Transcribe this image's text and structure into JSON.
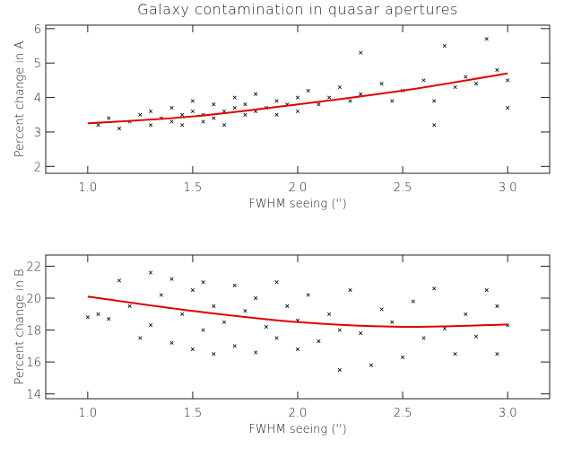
{
  "chart_data": [
    {
      "type": "scatter",
      "title": "Galaxy contamination in quasar apertures",
      "x_label": "FWHM seeing ('')",
      "y_label": "Percent change in A",
      "xlim": [
        0.8,
        3.2
      ],
      "xticks": [
        {
          "value": 1,
          "label": "1.0"
        },
        {
          "value": 1.5,
          "label": "1.5"
        },
        {
          "value": 2,
          "label": "2.0"
        },
        {
          "value": 2.5,
          "label": "2.5"
        },
        {
          "value": 3,
          "label": "3.0"
        }
      ],
      "ylim": [
        1.8,
        6.1
      ],
      "yticks": [
        2,
        3,
        4,
        5,
        6
      ],
      "series": [
        {
          "type": "scatter",
          "color": "#000000",
          "x": [
            1.05,
            1.1,
            1.15,
            1.2,
            1.25,
            1.3,
            1.3,
            1.35,
            1.4,
            1.4,
            1.45,
            1.45,
            1.5,
            1.5,
            1.55,
            1.55,
            1.6,
            1.6,
            1.65,
            1.65,
            1.7,
            1.7,
            1.75,
            1.75,
            1.8,
            1.8,
            1.85,
            1.9,
            1.9,
            1.95,
            2.0,
            2.0,
            2.05,
            2.1,
            2.15,
            2.2,
            2.25,
            2.3,
            2.3,
            2.4,
            2.45,
            2.5,
            2.6,
            2.65,
            2.7,
            2.75,
            2.8,
            2.85,
            2.9,
            2.95,
            3.0,
            3.0,
            2.65
          ],
          "values": [
            3.2,
            3.4,
            3.1,
            3.3,
            3.5,
            3.2,
            3.6,
            3.4,
            3.3,
            3.7,
            3.5,
            3.2,
            3.6,
            3.9,
            3.3,
            3.5,
            3.8,
            3.4,
            3.6,
            3.2,
            3.7,
            4.0,
            3.5,
            3.8,
            3.6,
            4.1,
            3.7,
            3.9,
            3.5,
            3.8,
            4.0,
            3.6,
            4.2,
            3.8,
            4.0,
            4.3,
            3.9,
            5.3,
            4.1,
            4.4,
            3.9,
            4.2,
            4.5,
            3.9,
            5.5,
            4.3,
            4.6,
            4.4,
            5.7,
            4.8,
            3.7,
            4.5,
            3.2
          ]
        },
        {
          "type": "line",
          "color": "#e00000",
          "x": [
            1.0,
            1.5,
            2.0,
            2.5,
            3.0
          ],
          "values": [
            3.25,
            3.45,
            3.8,
            4.2,
            4.7
          ]
        }
      ]
    },
    {
      "type": "scatter",
      "x_label": "FWHM seeing ('')",
      "y_label": "Percent change in B",
      "xlim": [
        0.8,
        3.2
      ],
      "xticks": [
        {
          "value": 1,
          "label": "1.0"
        },
        {
          "value": 1.5,
          "label": "1.5"
        },
        {
          "value": 2,
          "label": "2.0"
        },
        {
          "value": 2.5,
          "label": "2.5"
        },
        {
          "value": 3,
          "label": "3.0"
        }
      ],
      "ylim": [
        13.7,
        22.7
      ],
      "yticks": [
        14,
        16,
        18,
        20,
        22
      ],
      "series": [
        {
          "type": "scatter",
          "color": "#000000",
          "x": [
            1.0,
            1.05,
            1.1,
            1.15,
            1.2,
            1.25,
            1.3,
            1.3,
            1.35,
            1.4,
            1.4,
            1.45,
            1.5,
            1.5,
            1.55,
            1.55,
            1.6,
            1.6,
            1.65,
            1.7,
            1.7,
            1.75,
            1.8,
            1.8,
            1.85,
            1.9,
            1.9,
            1.95,
            2.0,
            2.0,
            2.05,
            2.1,
            2.15,
            2.2,
            2.2,
            2.25,
            2.3,
            2.35,
            2.4,
            2.45,
            2.5,
            2.55,
            2.6,
            2.65,
            2.7,
            2.75,
            2.8,
            2.85,
            2.9,
            2.95,
            3.0,
            2.95
          ],
          "values": [
            18.8,
            19.0,
            18.7,
            21.1,
            19.5,
            17.5,
            21.6,
            18.3,
            20.2,
            17.2,
            21.2,
            19.0,
            16.8,
            20.5,
            18.0,
            21.0,
            16.5,
            19.5,
            18.5,
            20.8,
            17.0,
            19.2,
            16.6,
            20.0,
            18.2,
            21.0,
            17.5,
            19.5,
            16.8,
            18.6,
            20.2,
            17.3,
            19.0,
            15.5,
            18.0,
            20.5,
            17.8,
            15.8,
            19.3,
            18.5,
            16.3,
            19.8,
            17.5,
            20.6,
            18.1,
            16.5,
            19.0,
            17.6,
            20.5,
            16.5,
            18.3,
            19.5
          ]
        },
        {
          "type": "line",
          "color": "#e00000",
          "x": [
            1.0,
            1.5,
            2.0,
            2.5,
            3.0
          ],
          "values": [
            20.1,
            19.2,
            18.5,
            18.2,
            18.35
          ]
        }
      ]
    }
  ]
}
